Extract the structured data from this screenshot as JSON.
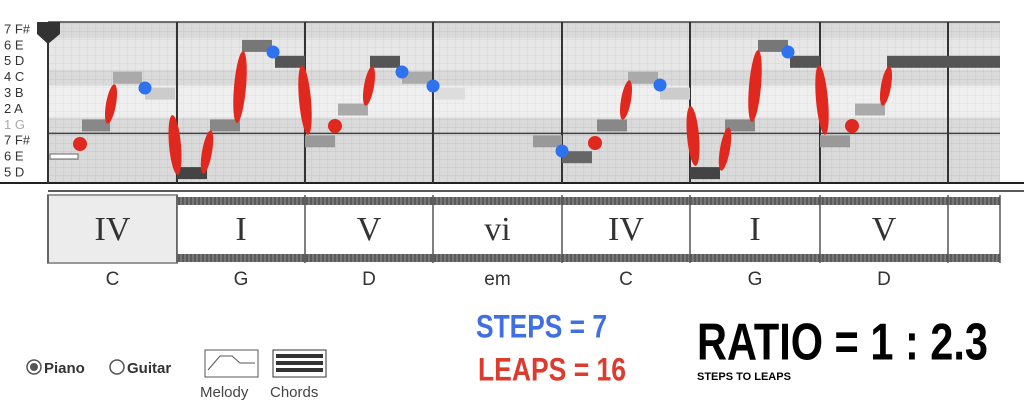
{
  "roll": {
    "rows": [
      "7 F#",
      "6 E",
      "5 D",
      "4 C",
      "3 B",
      "2 A",
      "1 G",
      "7 F#",
      "6 E",
      "5 D"
    ]
  },
  "chords": [
    {
      "numeral": "IV",
      "name": "C"
    },
    {
      "numeral": "I",
      "name": "G"
    },
    {
      "numeral": "V",
      "name": "D"
    },
    {
      "numeral": "vi",
      "name": "em"
    },
    {
      "numeral": "IV",
      "name": "C"
    },
    {
      "numeral": "I",
      "name": "G"
    },
    {
      "numeral": "V",
      "name": "D"
    }
  ],
  "instrument": {
    "options": [
      "Piano",
      "Guitar"
    ]
  },
  "views": [
    "Melody",
    "Chords"
  ],
  "stats": {
    "steps": "STEPS = 7",
    "leaps": "LEAPS = 16",
    "ratio": "RATIO = 1 : 2.3",
    "ratio_caption": "STEPS TO LEAPS"
  }
}
